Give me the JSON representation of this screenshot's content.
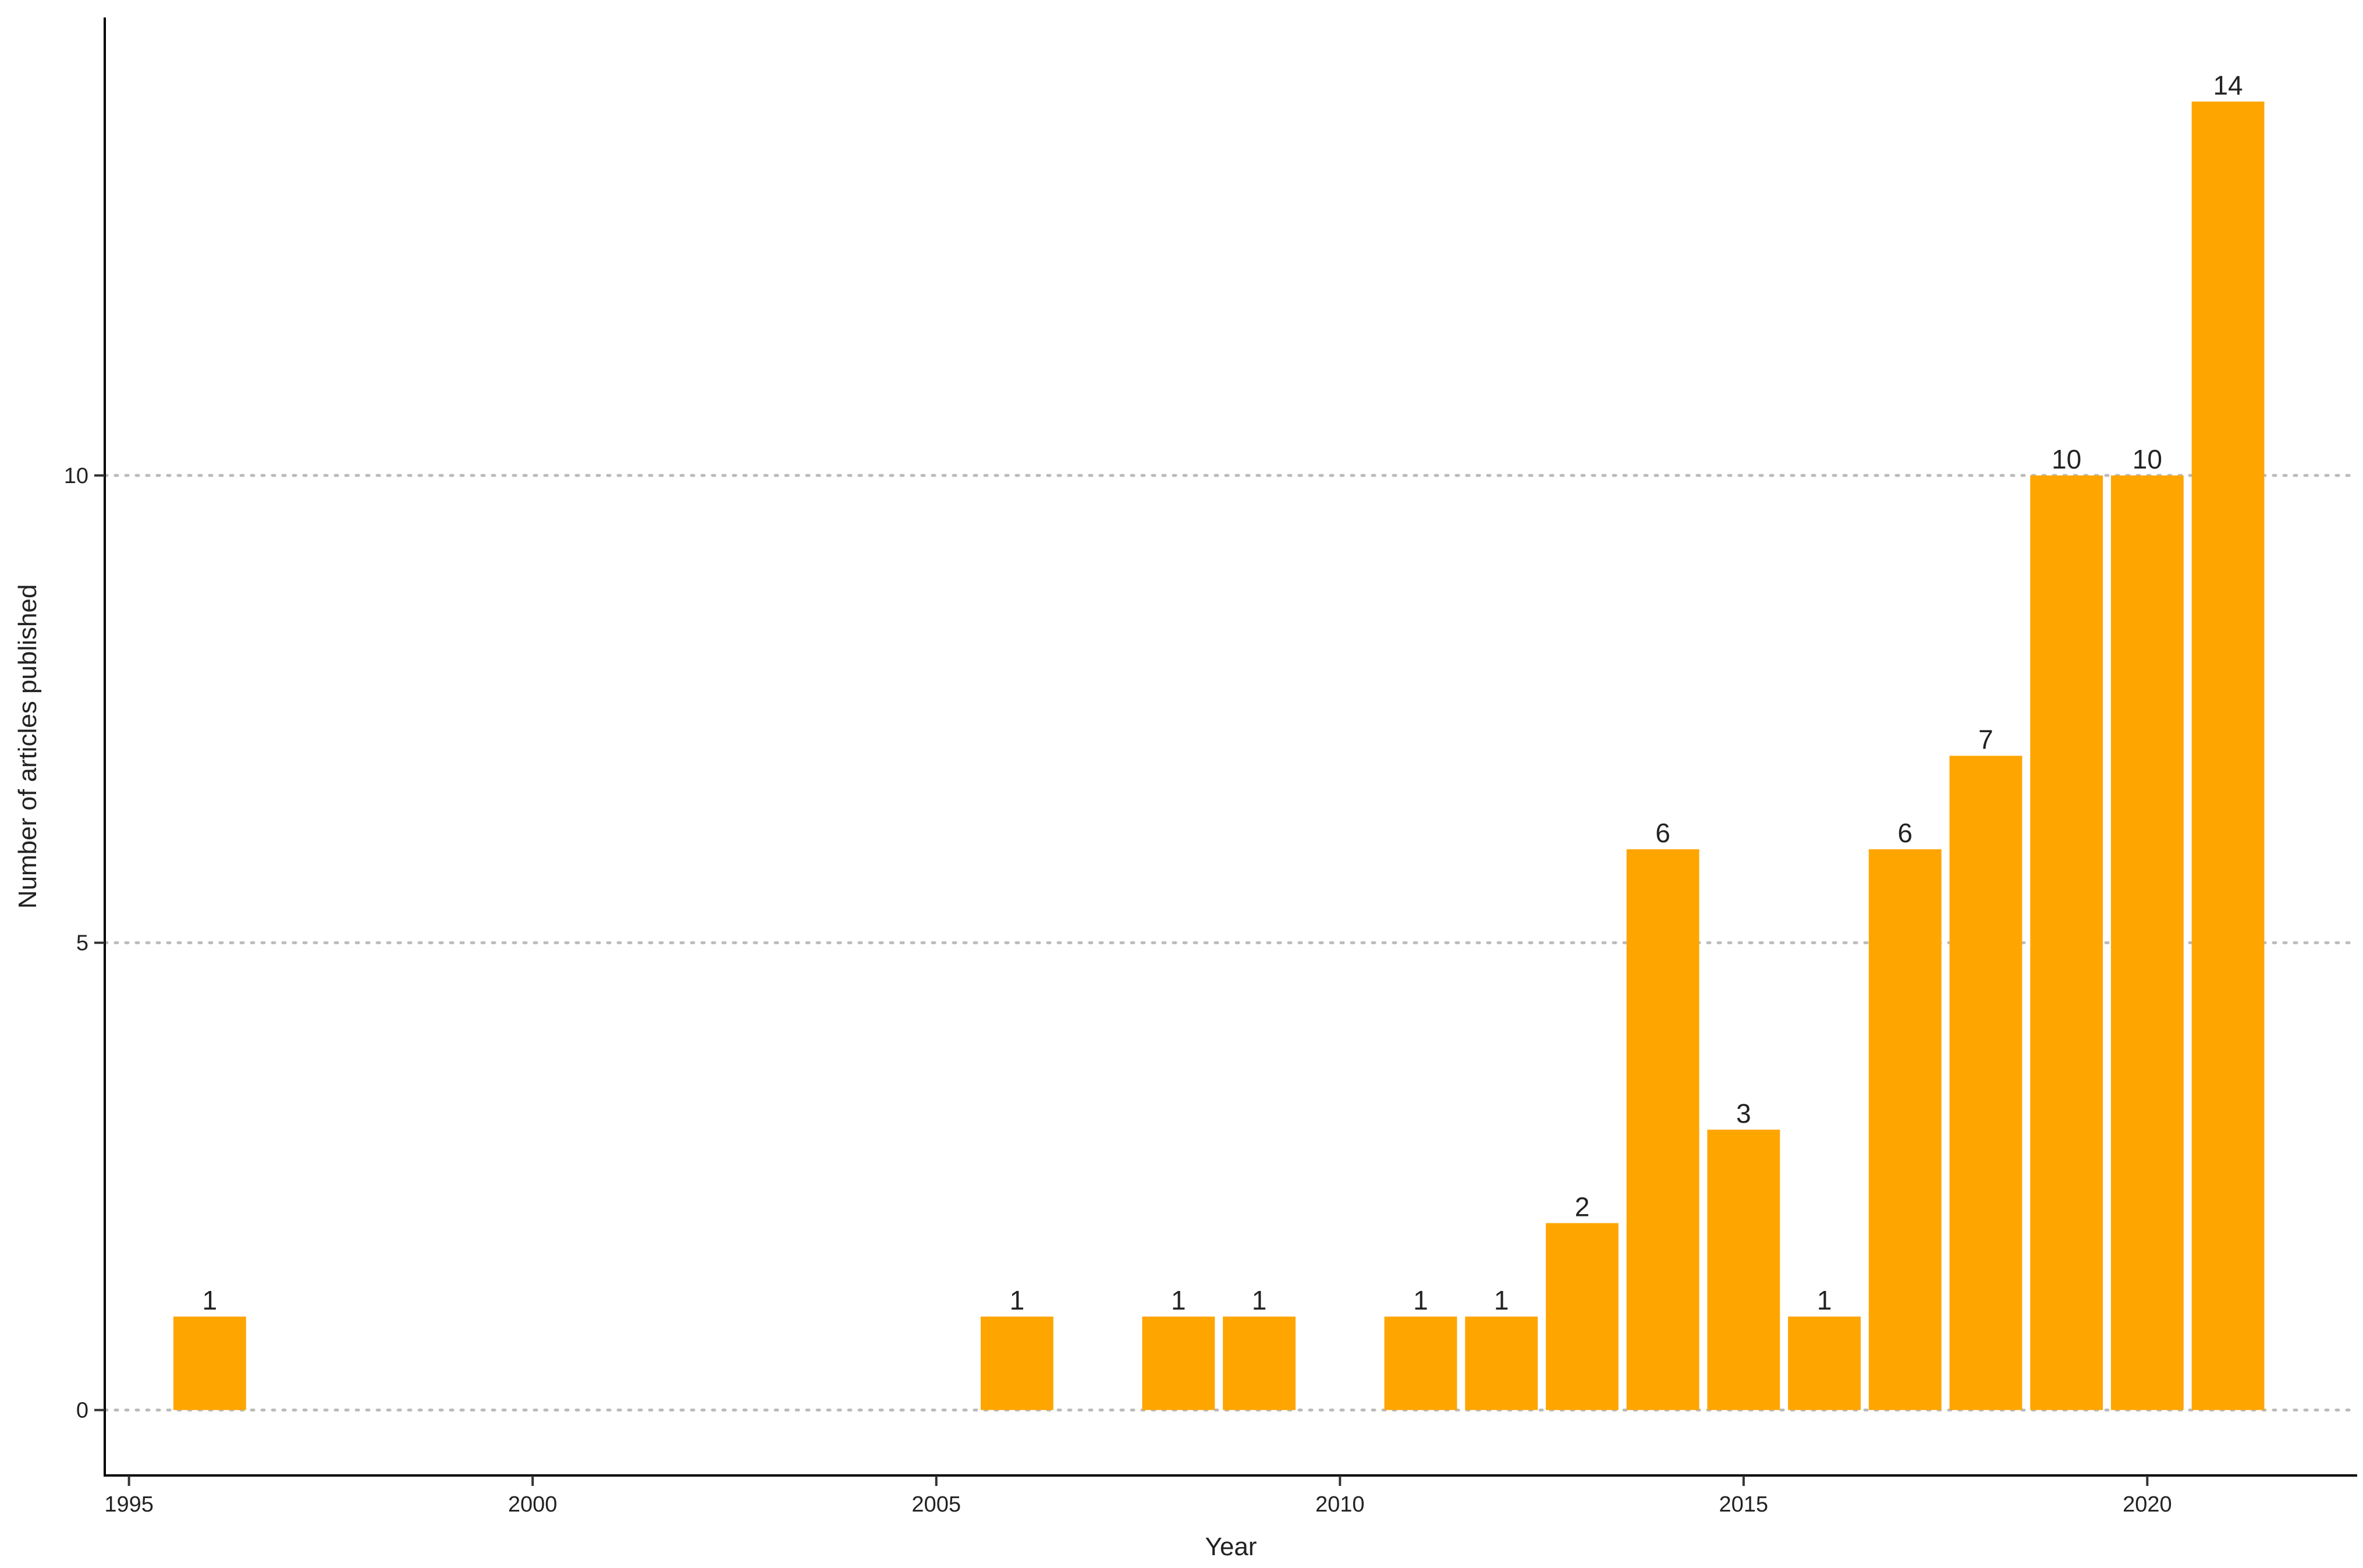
{
  "chart_data": {
    "type": "bar",
    "title": "",
    "xlabel": "Year",
    "ylabel": "Number of articles published",
    "x": [
      1996,
      2006,
      2008,
      2009,
      2011,
      2012,
      2013,
      2014,
      2015,
      2016,
      2017,
      2018,
      2019,
      2020,
      2021
    ],
    "values": [
      1,
      1,
      1,
      1,
      1,
      1,
      2,
      6,
      3,
      1,
      6,
      7,
      10,
      10,
      14
    ],
    "data_labels": [
      "1",
      "1",
      "1",
      "1",
      "1",
      "1",
      "2",
      "6",
      "3",
      "1",
      "6",
      "7",
      "10",
      "10",
      "14"
    ],
    "xlim": [
      1994.7,
      1922.6
    ],
    "ylim": [
      -0.7,
      14.9
    ],
    "x_ticks": [
      1995,
      2000,
      2005,
      2010,
      2015,
      2020
    ],
    "x_tick_labels": [
      "1995",
      "2000",
      "2005",
      "2010",
      "2015",
      "2020"
    ],
    "y_ticks": [
      0,
      5,
      10
    ],
    "y_tick_labels": [
      "0",
      "5",
      "10"
    ],
    "bar_width": 0.9,
    "grid": "horizontal dotted major",
    "legend": "none",
    "colors": {
      "bar": "#FFA500",
      "grid": "#BBBBBB",
      "axis": "#000000",
      "text": "#222222"
    }
  }
}
